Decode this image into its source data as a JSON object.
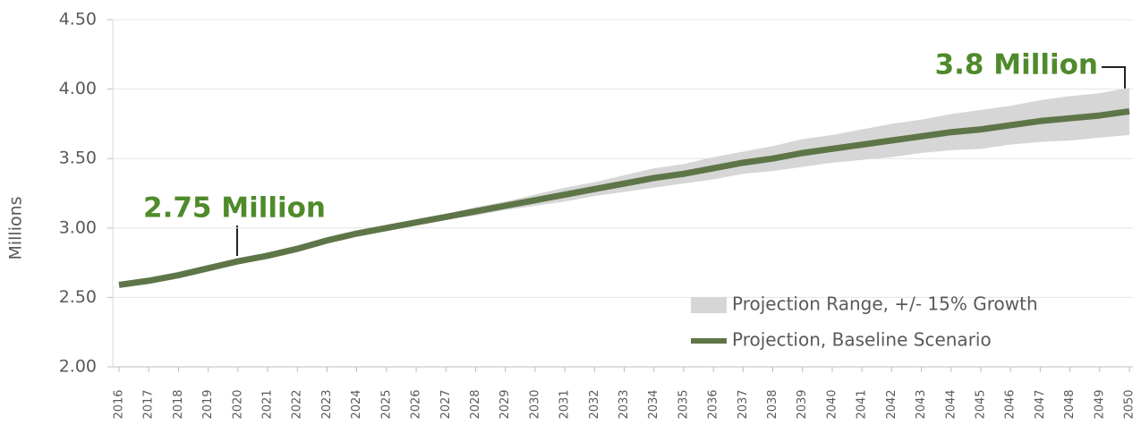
{
  "chart_data": {
    "type": "line",
    "y_label": "Millions",
    "categories": [
      "2016",
      "2017",
      "2018",
      "2019",
      "2020",
      "2021",
      "2022",
      "2023",
      "2024",
      "2025",
      "2026",
      "2027",
      "2028",
      "2029",
      "2030",
      "2031",
      "2032",
      "2033",
      "2034",
      "2035",
      "2036",
      "2037",
      "2038",
      "2039",
      "2040",
      "2041",
      "2042",
      "2043",
      "2044",
      "2045",
      "2046",
      "2047",
      "2048",
      "2049",
      "2050"
    ],
    "series": [
      {
        "name": "Projection Range, +/- 15% Growth",
        "color": "#d6d6d6",
        "kind": "band",
        "lower": [
          null,
          null,
          null,
          null,
          null,
          null,
          null,
          null,
          2.96,
          2.99,
          3.03,
          3.06,
          3.09,
          3.13,
          3.16,
          3.19,
          3.23,
          3.26,
          3.29,
          3.32,
          3.35,
          3.39,
          3.41,
          3.44,
          3.47,
          3.49,
          3.51,
          3.54,
          3.56,
          3.57,
          3.6,
          3.62,
          3.63,
          3.65,
          3.67
        ],
        "upper": [
          null,
          null,
          null,
          null,
          null,
          null,
          null,
          null,
          2.96,
          3.01,
          3.05,
          3.1,
          3.15,
          3.19,
          3.24,
          3.29,
          3.33,
          3.38,
          3.43,
          3.46,
          3.51,
          3.55,
          3.59,
          3.64,
          3.67,
          3.71,
          3.75,
          3.78,
          3.82,
          3.85,
          3.88,
          3.92,
          3.95,
          3.97,
          4.01
        ]
      },
      {
        "name": "Projection, Baseline Scenario",
        "color": "#5e7548",
        "kind": "line",
        "values": [
          2.59,
          2.62,
          2.66,
          2.71,
          2.76,
          2.8,
          2.85,
          2.91,
          2.96,
          3.0,
          3.04,
          3.08,
          3.12,
          3.16,
          3.2,
          3.24,
          3.28,
          3.32,
          3.36,
          3.39,
          3.43,
          3.47,
          3.5,
          3.54,
          3.57,
          3.6,
          3.63,
          3.66,
          3.69,
          3.71,
          3.74,
          3.77,
          3.79,
          3.81,
          3.84
        ]
      }
    ],
    "ylim": [
      2.0,
      4.5
    ],
    "yticks": [
      {
        "value": 2.0,
        "label": "2.00"
      },
      {
        "value": 2.5,
        "label": "2.50"
      },
      {
        "value": 3.0,
        "label": "3.00"
      },
      {
        "value": 3.5,
        "label": "3.50"
      },
      {
        "value": 4.0,
        "label": "4.00"
      },
      {
        "value": 4.5,
        "label": "4.50"
      }
    ],
    "grid": true,
    "legend": "lower right",
    "annotations": [
      "2.75 Million",
      "3.8 Million"
    ]
  }
}
